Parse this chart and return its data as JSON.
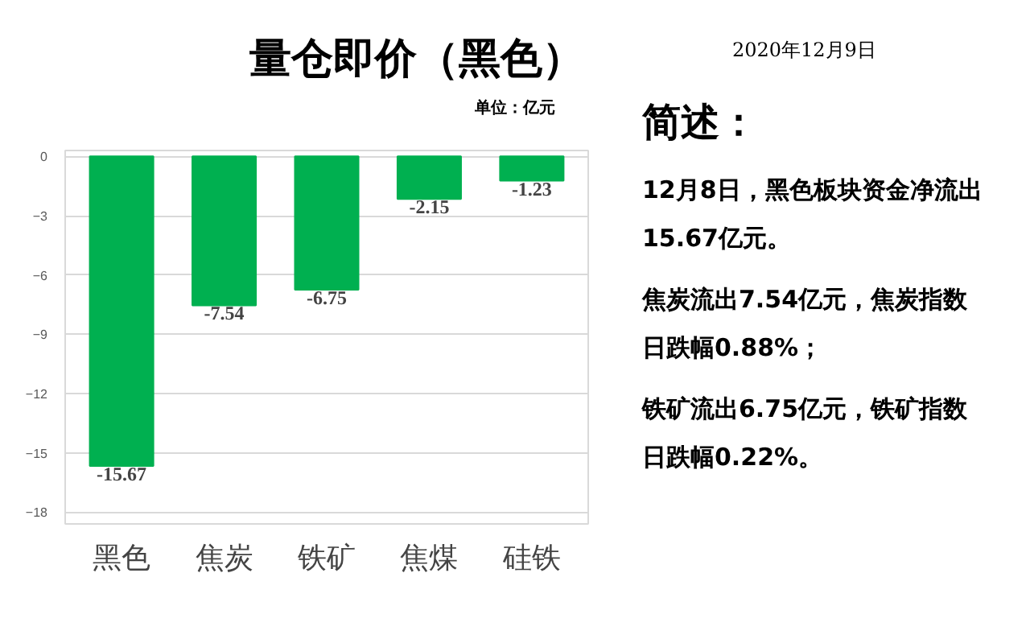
{
  "chart_data": {
    "type": "bar",
    "title": "量仓即价（黑色）",
    "categories": [
      "黑色",
      "焦炭",
      "铁矿",
      "焦煤",
      "硅铁"
    ],
    "values": [
      -15.67,
      -7.54,
      -6.75,
      -2.15,
      -1.23
    ],
    "color": "#00b050",
    "ylim": [
      -18.6,
      0.3
    ],
    "yticks": [
      0,
      -3,
      -6,
      -9,
      -12,
      -15,
      -18
    ],
    "grid": "y",
    "data_labels": true,
    "annotations": [
      "2020年12月9日",
      "单位：亿元",
      "简述：",
      "12月8日，黑色板块资金净流出15.67亿元。",
      "焦炭流出7.54亿元，焦炭指数日跌幅0.88%；",
      "铁矿流出6.75亿元，铁矿指数日跌幅0.22%。"
    ]
  }
}
